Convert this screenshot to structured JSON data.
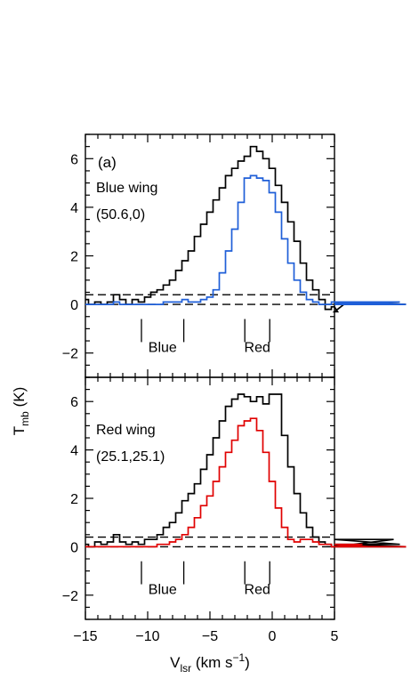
{
  "chart_data": [
    {
      "type": "line",
      "panel_label": "(a)",
      "annotations": [
        "Blue wing",
        "(50.6,0)"
      ],
      "region_labels": {
        "blue": "Blue",
        "red": "Red"
      },
      "xlim": [
        -15,
        5
      ],
      "ylim": [
        -3,
        7
      ],
      "x_ticks": [
        -15,
        -10,
        -5,
        0,
        5
      ],
      "y_ticks": [
        -2,
        0,
        2,
        4,
        6
      ],
      "hlines": [
        0,
        0.4
      ],
      "vlines": [
        -10.5,
        -7.1,
        -2.2,
        -0.2
      ],
      "step_x0": -15.0,
      "step_dx": 0.5,
      "series": [
        {
          "color": "#000000",
          "values": [
            0.2,
            0.0,
            0.1,
            0.0,
            0.1,
            0.4,
            0.2,
            0.0,
            0.2,
            0.1,
            0.3,
            0.5,
            0.6,
            0.8,
            1.0,
            1.4,
            1.8,
            2.2,
            2.8,
            3.3,
            3.8,
            4.3,
            4.8,
            5.3,
            5.6,
            5.9,
            6.1,
            6.5,
            6.3,
            6.0,
            5.6,
            4.9,
            4.2,
            3.4,
            2.6,
            1.7,
            1.0,
            0.6,
            0.2,
            -0.2,
            -0.1,
            -0.3,
            0.0,
            0.1,
            0.0,
            0.1,
            0.0,
            0.1,
            0.0,
            0.1,
            0.0,
            0.1,
            0.0
          ]
        },
        {
          "color": "#1f5fd8",
          "values": [
            0.0,
            0.0,
            0.0,
            0.0,
            0.0,
            0.1,
            0.0,
            0.0,
            0.0,
            0.0,
            0.0,
            0.0,
            0.0,
            0.1,
            0.1,
            0.1,
            0.2,
            0.1,
            0.1,
            0.2,
            0.3,
            0.6,
            1.3,
            2.2,
            3.1,
            4.2,
            5.2,
            5.3,
            5.2,
            5.1,
            4.6,
            3.8,
            2.7,
            1.7,
            1.0,
            0.5,
            0.2,
            0.1,
            0.0,
            0.0,
            0.1,
            0.0,
            0.0,
            0.1,
            0.0,
            0.0,
            0.0,
            0.1,
            0.0,
            0.0,
            0.0,
            0.1,
            0.0
          ]
        }
      ]
    },
    {
      "type": "line",
      "annotations": [
        "Red wing",
        "(25.1,25.1)"
      ],
      "region_labels": {
        "blue": "Blue",
        "red": "Red"
      },
      "xlim": [
        -15,
        5
      ],
      "ylim": [
        -3,
        7
      ],
      "x_ticks": [
        -15,
        -10,
        -5,
        0,
        5
      ],
      "x_tick_labels": [
        "−15",
        "−10",
        "−5",
        "0",
        "5"
      ],
      "y_ticks": [
        -2,
        0,
        2,
        4,
        6
      ],
      "hlines": [
        0,
        0.4
      ],
      "vlines": [
        -10.5,
        -7.1,
        -2.2,
        -0.2
      ],
      "step_x0": -15.0,
      "step_dx": 0.5,
      "xlabel_main": "V",
      "xlabel_sub": "lsr",
      "xlabel_unit": " (km s",
      "xlabel_exp": "−1",
      "xlabel_close": ")",
      "series": [
        {
          "color": "#000000",
          "values": [
            0.1,
            0.0,
            0.2,
            0.1,
            0.2,
            0.5,
            0.2,
            0.1,
            0.2,
            0.1,
            0.3,
            0.3,
            0.5,
            0.8,
            1.0,
            1.4,
            1.9,
            2.2,
            2.6,
            3.2,
            3.8,
            4.5,
            5.2,
            5.8,
            6.1,
            6.3,
            6.2,
            6.0,
            6.2,
            5.9,
            6.3,
            6.3,
            4.6,
            3.3,
            2.2,
            1.4,
            0.8,
            0.4,
            0.2,
            0.1,
            0.0,
            0.1,
            0.0,
            0.1,
            0.0,
            0.1,
            0.0,
            0.1,
            0.1,
            0.0,
            0.3,
            0.1,
            0.0
          ]
        },
        {
          "color": "#e00000",
          "values": [
            0.0,
            0.0,
            0.0,
            0.0,
            0.0,
            0.0,
            0.0,
            0.0,
            0.0,
            0.0,
            0.0,
            0.0,
            0.1,
            0.1,
            0.2,
            0.3,
            0.5,
            0.8,
            1.2,
            1.7,
            2.1,
            2.7,
            3.3,
            3.9,
            4.4,
            5.0,
            5.2,
            5.3,
            4.8,
            3.9,
            2.7,
            1.6,
            0.8,
            0.3,
            0.2,
            0.3,
            0.3,
            0.2,
            0.1,
            0.1,
            0.0,
            0.0,
            0.0,
            0.0,
            0.0,
            0.1,
            0.0,
            0.0,
            0.0,
            0.0,
            0.0,
            0.0,
            0.0
          ]
        }
      ]
    }
  ],
  "y_axis_label_main": "T",
  "y_axis_label_sub": "mb",
  "y_axis_label_unit": " (K)"
}
